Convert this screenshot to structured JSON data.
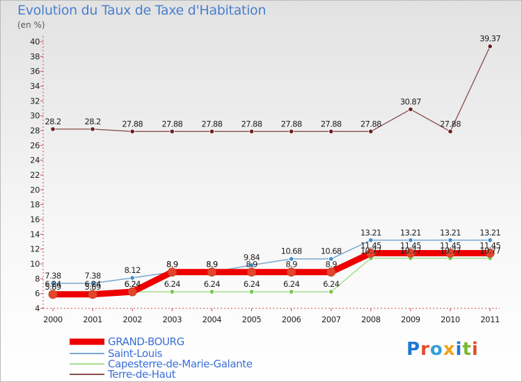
{
  "chart_data": {
    "type": "line",
    "title": "Evolution du Taux de Taxe d'Habitation",
    "ylabel": "(en %)",
    "xlabel": "",
    "ylim": [
      4,
      40
    ],
    "ytick_step": 2,
    "categories": [
      "2000",
      "2001",
      "2002",
      "2003",
      "2004",
      "2005",
      "2006",
      "2007",
      "2008",
      "2009",
      "2010",
      "2011"
    ],
    "series": [
      {
        "name": "GRAND-BOURG",
        "color": "#ee0000",
        "marker": "#e7432b",
        "values": [
          5.89,
          5.89,
          6.24,
          8.9,
          8.9,
          8.9,
          8.9,
          8.9,
          11.45,
          11.45,
          11.45,
          11.45
        ],
        "labels": [
          "5.89",
          "5.89",
          "6.24",
          "8.9",
          "8.9",
          "8.9",
          "8.9",
          "8.9",
          "11.45",
          "11.45",
          "11.45",
          "11.45"
        ]
      },
      {
        "name": "Saint-Louis",
        "color": "#78a8d0",
        "marker": "#3c8fd2",
        "values": [
          7.38,
          7.38,
          8.12,
          8.9,
          8.9,
          9.84,
          10.68,
          10.68,
          13.21,
          13.21,
          13.21,
          13.21
        ],
        "labels": [
          "7.38",
          "7.38",
          "8.12",
          "8.9",
          "8.9",
          "9.84",
          "10.68",
          "10.68",
          "13.21",
          "13.21",
          "13.21",
          "13.21"
        ]
      },
      {
        "name": "Capesterre-de-Marie-Galante",
        "color": "#a5dd8d",
        "marker": "#74c94a",
        "values": [
          6.24,
          6.24,
          6.24,
          6.24,
          6.24,
          6.24,
          6.24,
          6.24,
          10.77,
          10.77,
          10.77,
          10.77
        ],
        "labels": [
          "6.24",
          "6.24",
          "6.24",
          "6.24",
          "6.24",
          "6.24",
          "6.24",
          "6.24",
          "10.77",
          "10.77",
          "10.77",
          "10.77"
        ]
      },
      {
        "name": "Terre-de-Haut",
        "color": "#8a4a4a",
        "marker": "#6e1f1f",
        "values": [
          28.2,
          28.2,
          27.88,
          27.88,
          27.88,
          27.88,
          27.88,
          27.88,
          27.88,
          30.87,
          27.88,
          39.37
        ],
        "labels": [
          "28.2",
          "28.2",
          "27.88",
          "27.88",
          "27.88",
          "27.88",
          "27.88",
          "27.88",
          "27.88",
          "30.87",
          "27.88",
          "39.37"
        ]
      }
    ]
  },
  "brand": {
    "parts": [
      "P",
      "r",
      "o",
      "x",
      "i",
      "t",
      "i"
    ],
    "colors": [
      "#1e78d0",
      "#e64b2c",
      "#31a0d8",
      "#f0a21a",
      "#1e78d0",
      "#7ab82d",
      "#e64b2c"
    ]
  }
}
